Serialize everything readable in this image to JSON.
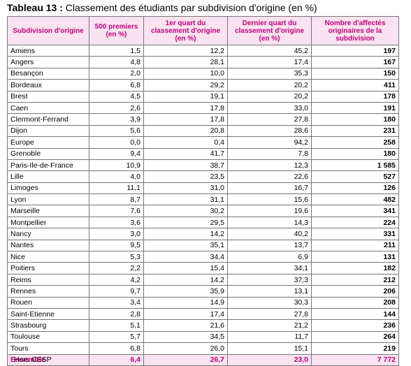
{
  "header": {
    "label": "Tableau 13 :",
    "title": "Classement des étudiants par subdivision d'origine (en %)"
  },
  "table": {
    "columns": [
      "Subdivision d'origine",
      "500 premiers (en %)",
      "1er quart du classement d'origine (en %)",
      "Dernier quart du classement d'origine (en %)",
      "Nombre d'affectés originaires de la subdivision"
    ],
    "rows": [
      [
        "Amiens",
        "1,5",
        "12,2",
        "45,2",
        "197"
      ],
      [
        "Angers",
        "4,8",
        "28,1",
        "17,4",
        "167"
      ],
      [
        "Besançon",
        "2,0",
        "10,0",
        "35,3",
        "150"
      ],
      [
        "Bordeaux",
        "6,8",
        "29,2",
        "20,2",
        "411"
      ],
      [
        "Brest",
        "4,5",
        "19,1",
        "20,2",
        "178"
      ],
      [
        "Caen",
        "2,6",
        "17,8",
        "33,0",
        "191"
      ],
      [
        "Clermont-Ferrand",
        "3,9",
        "17,8",
        "27,8",
        "180"
      ],
      [
        "Dijon",
        "5,6",
        "20,8",
        "28,6",
        "231"
      ],
      [
        "Europe",
        "0,0",
        "0,4",
        "94,2",
        "258"
      ],
      [
        "Grenoble",
        "9,4",
        "41,7",
        "7,8",
        "180"
      ],
      [
        "Paris-Ile-de-France",
        "10,9",
        "38,7",
        "12,3",
        "1 585"
      ],
      [
        "Lille",
        "4,0",
        "23,5",
        "22,6",
        "527"
      ],
      [
        "Limoges",
        "11,1",
        "31,0",
        "16,7",
        "126"
      ],
      [
        "Lyon",
        "8,7",
        "31,1",
        "15,6",
        "482"
      ],
      [
        "Marseille",
        "7,6",
        "30,2",
        "19,6",
        "341"
      ],
      [
        "Montpellier",
        "3,6",
        "29,5",
        "14,3",
        "224"
      ],
      [
        "Nancy",
        "3,0",
        "14,2",
        "40,2",
        "331"
      ],
      [
        "Nantes",
        "9,5",
        "35,1",
        "13,7",
        "211"
      ],
      [
        "Nice",
        "5,3",
        "34,4",
        "6,9",
        "131"
      ],
      [
        "Poitiers",
        "2,2",
        "15,4",
        "34,1",
        "182"
      ],
      [
        "Reims",
        "4,2",
        "14,2",
        "37,3",
        "212"
      ],
      [
        "Rennes",
        "9,7",
        "35,9",
        "13,1",
        "206"
      ],
      [
        "Rouen",
        "3,4",
        "14,9",
        "30,3",
        "208"
      ],
      [
        "Saint-Etienne",
        "2,8",
        "17,4",
        "27,8",
        "144"
      ],
      [
        "Strasbourg",
        "5,1",
        "21,6",
        "21,2",
        "236"
      ],
      [
        "Toulouse",
        "5,7",
        "34,5",
        "11,7",
        "264"
      ],
      [
        "Tours",
        "6,8",
        "26,0",
        "15,1",
        "219"
      ]
    ],
    "total": [
      "Ensemble",
      "6,4",
      "26,7",
      "23,0",
      "7 772"
    ]
  },
  "note": "Hors CESP"
}
